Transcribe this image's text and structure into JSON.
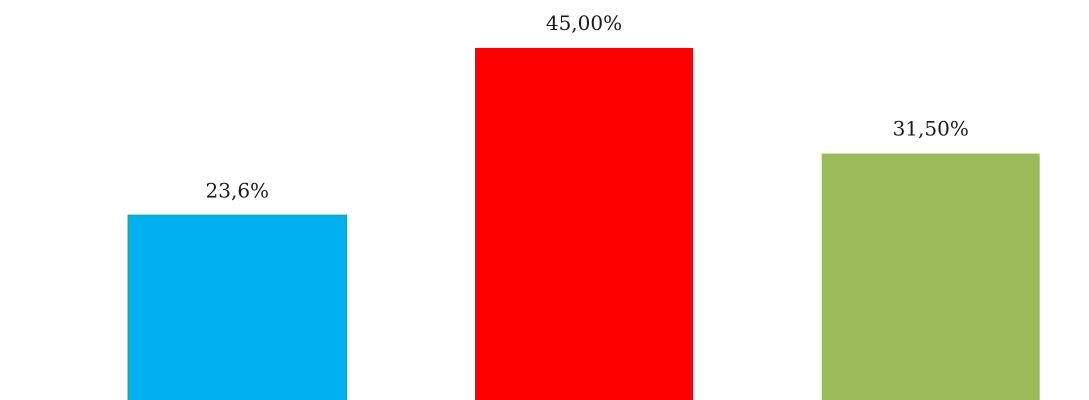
{
  "chart_data": {
    "type": "bar",
    "title": "",
    "xlabel": "",
    "ylabel": "",
    "categories": [
      "",
      "",
      ""
    ],
    "values": [
      23.6,
      45.0,
      31.5
    ],
    "data_labels": [
      "23,6%",
      "45,00%",
      "31,50%"
    ],
    "colors": [
      "#00B0F0",
      "#FF0000",
      "#9BBB59"
    ],
    "ylim": [
      0,
      50
    ],
    "grid": false,
    "legend": "none"
  }
}
